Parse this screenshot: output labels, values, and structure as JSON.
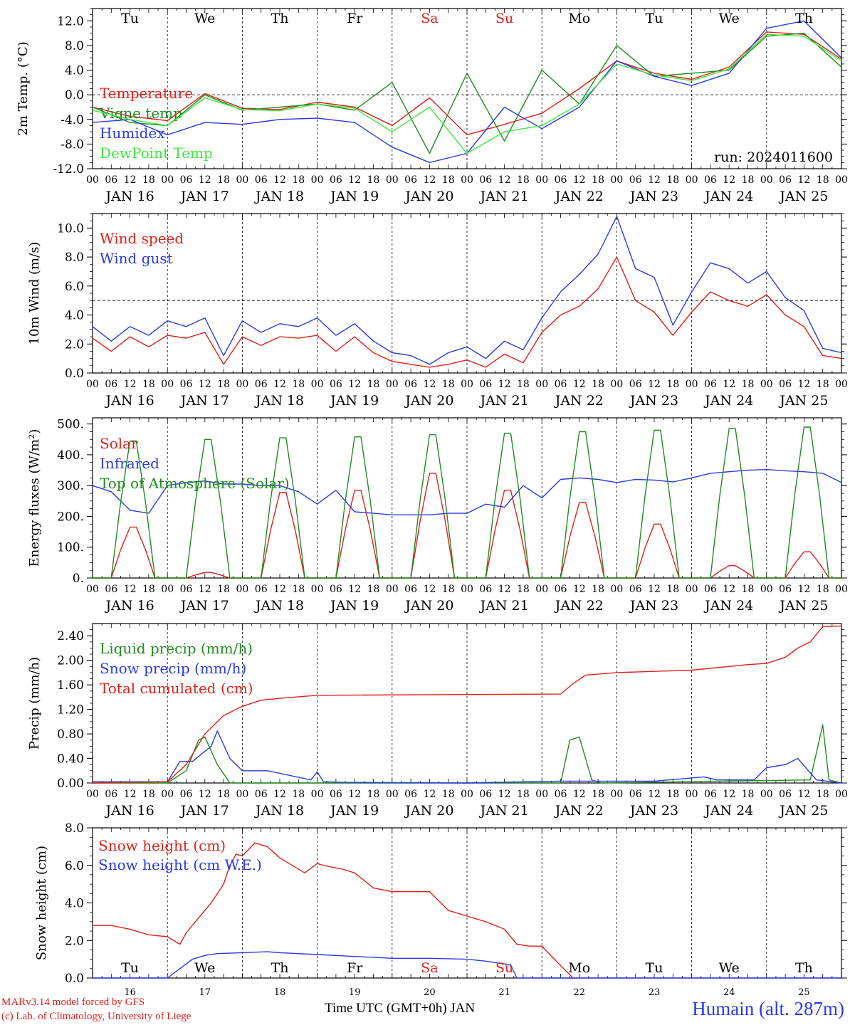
{
  "hour_ticks": [
    "00",
    "06",
    "12",
    "18"
  ],
  "date_labels": [
    "JAN 16",
    "JAN 17",
    "JAN 18",
    "JAN 19",
    "JAN 20",
    "JAN 21",
    "JAN 22",
    "JAN 23",
    "JAN 24",
    "JAN 25"
  ],
  "day_names": [
    "Tu",
    "We",
    "Th",
    "Fr",
    "Sa",
    "Su",
    "Mo",
    "Tu",
    "We",
    "Th"
  ],
  "day_name_colors": [
    "#000000",
    "#000000",
    "#000000",
    "#000000",
    "#e0201a",
    "#e0201a",
    "#000000",
    "#000000",
    "#000000",
    "#000000"
  ],
  "day_numbers": [
    "16",
    "17",
    "18",
    "19",
    "20",
    "21",
    "22",
    "23",
    "24",
    "25"
  ],
  "footer": {
    "credit_line1": "MARv3.14 model forced by GFS",
    "credit_line2": "(c) Lab. of Climatology, University of Liege",
    "xaxis_title": "Time UTC (GMT+0h) JAN",
    "station": "Humain (alt. 287m)"
  },
  "colors": {
    "red": "#e0201a",
    "green": "#1e8c1e",
    "blue": "#2a3be0",
    "lightgreen": "#3ee83e",
    "black": "#000000"
  },
  "chart_data": [
    {
      "type": "line",
      "ylabel": "2m Temp. (°C)",
      "ylim": [
        -12,
        14
      ],
      "yticks": [
        "-12.0",
        "-8.0",
        "-4.0",
        "0.0",
        "4.0",
        "8.0",
        "12.0"
      ],
      "reference_line": 0,
      "annotation": "run: 2024011600",
      "x_hours": [
        0,
        12,
        24,
        36,
        48,
        60,
        72,
        84,
        96,
        108,
        120,
        132,
        144,
        156,
        168,
        180,
        192,
        204,
        216,
        228,
        240
      ],
      "series": [
        {
          "name": "Temperature",
          "color": "#e0201a",
          "values": [
            -2.0,
            -3.5,
            -4.2,
            0.2,
            -2.2,
            -2.4,
            -1.2,
            -2.0,
            -5.0,
            -0.5,
            -6.5,
            -4.8,
            -3.0,
            1.0,
            5.5,
            3.5,
            2.5,
            4.5,
            10.2,
            9.8,
            5.8
          ]
        },
        {
          "name": "Vigne temp",
          "color": "#1e8c1e",
          "values": [
            -2.0,
            -4.5,
            -5.0,
            0.0,
            -2.5,
            -2.0,
            -1.5,
            -2.5,
            2.0,
            -9.5,
            3.5,
            -7.5,
            4.0,
            -1.5,
            8.0,
            3.0,
            3.5,
            4.0,
            9.5,
            10.0,
            4.5
          ]
        },
        {
          "name": "Humidex",
          "color": "#2a3be0",
          "values": [
            -4.5,
            -4.0,
            -6.5,
            -4.5,
            -4.8,
            -4.0,
            -3.8,
            -4.5,
            -8.5,
            -11.0,
            -9.5,
            -2.0,
            -5.5,
            -2.0,
            5.5,
            3.0,
            1.5,
            3.5,
            10.8,
            12.0,
            6.0
          ]
        },
        {
          "name": "DewPoint Temp",
          "color": "#3ee83e",
          "values": [
            -2.5,
            -4.0,
            -5.0,
            -0.5,
            -2.4,
            -2.6,
            -1.5,
            -2.2,
            -6.0,
            -2.0,
            -9.5,
            -6.0,
            -5.0,
            -1.5,
            5.0,
            3.2,
            2.3,
            4.2,
            9.8,
            9.5,
            5.5
          ]
        }
      ]
    },
    {
      "type": "line",
      "ylabel": "10m Wind (m/s)",
      "ylim": [
        0,
        11
      ],
      "yticks": [
        "0.0",
        "2.0",
        "4.0",
        "6.0",
        "8.0",
        "10.0"
      ],
      "reference_line": 5,
      "x_hours": [
        0,
        6,
        12,
        18,
        24,
        30,
        36,
        42,
        48,
        54,
        60,
        66,
        72,
        78,
        84,
        90,
        96,
        102,
        108,
        114,
        120,
        126,
        132,
        138,
        144,
        150,
        156,
        162,
        168,
        174,
        180,
        186,
        192,
        198,
        204,
        210,
        216,
        222,
        228,
        234,
        240
      ],
      "series": [
        {
          "name": "Wind speed",
          "color": "#e0201a",
          "values": [
            2.4,
            1.5,
            2.5,
            1.8,
            2.6,
            2.4,
            2.8,
            0.6,
            2.5,
            1.9,
            2.5,
            2.4,
            2.6,
            1.5,
            2.5,
            1.4,
            0.8,
            0.6,
            0.4,
            0.6,
            0.9,
            0.4,
            1.3,
            0.7,
            2.8,
            4.0,
            4.6,
            5.8,
            8.0,
            5.0,
            4.2,
            2.6,
            4.2,
            5.6,
            5.0,
            4.6,
            5.4,
            4.0,
            3.2,
            1.2,
            1.0
          ]
        },
        {
          "name": "Wind gust",
          "color": "#2a3be0",
          "values": [
            3.2,
            2.2,
            3.2,
            2.6,
            3.6,
            3.2,
            3.8,
            1.2,
            3.6,
            2.8,
            3.4,
            3.2,
            3.8,
            2.6,
            3.4,
            2.2,
            1.4,
            1.2,
            0.6,
            1.4,
            1.8,
            1.0,
            2.2,
            1.6,
            3.8,
            5.6,
            6.8,
            8.2,
            10.8,
            7.2,
            6.6,
            3.3,
            5.6,
            7.6,
            7.2,
            6.2,
            7.0,
            5.2,
            4.3,
            1.7,
            1.4
          ]
        }
      ]
    },
    {
      "type": "line",
      "ylabel": "Energy fluxes (W/m²)",
      "ylim": [
        0,
        520
      ],
      "yticks": [
        "0.",
        "100.",
        "200.",
        "300.",
        "400.",
        "500."
      ],
      "series": [
        {
          "name": "Solar",
          "color": "#e0201a",
          "peaks": [
            [
              13,
              165
            ],
            [
              37,
              18
            ],
            [
              61,
              278
            ],
            [
              85,
              285
            ],
            [
              109,
              340
            ],
            [
              133,
              285
            ],
            [
              157,
              245
            ],
            [
              181,
              175
            ],
            [
              205,
              40
            ],
            [
              229,
              85
            ]
          ]
        },
        {
          "name": "Infrared",
          "color": "#2a3be0",
          "x_hours": [
            0,
            6,
            12,
            18,
            24,
            30,
            36,
            42,
            48,
            54,
            60,
            66,
            72,
            78,
            84,
            90,
            96,
            102,
            108,
            114,
            120,
            126,
            132,
            138,
            144,
            150,
            156,
            162,
            168,
            174,
            180,
            186,
            192,
            198,
            204,
            210,
            216,
            222,
            228,
            234,
            240
          ],
          "values": [
            300,
            280,
            220,
            210,
            300,
            310,
            315,
            305,
            305,
            300,
            300,
            280,
            240,
            285,
            215,
            210,
            205,
            205,
            205,
            210,
            210,
            240,
            230,
            300,
            260,
            320,
            325,
            320,
            310,
            320,
            318,
            312,
            325,
            340,
            345,
            350,
            352,
            348,
            345,
            340,
            310
          ]
        },
        {
          "name": "Top of Atmosphere (Solar)",
          "color": "#1e8c1e",
          "peaks": [
            [
              13,
              445
            ],
            [
              37,
              450
            ],
            [
              61,
              455
            ],
            [
              85,
              458
            ],
            [
              109,
              465
            ],
            [
              133,
              470
            ],
            [
              157,
              475
            ],
            [
              181,
              480
            ],
            [
              205,
              485
            ],
            [
              229,
              490
            ]
          ]
        }
      ]
    },
    {
      "type": "line",
      "ylabel": "Precip (mm/h)",
      "ylim": [
        0,
        2.6
      ],
      "yticks": [
        "0.00",
        "0.40",
        "0.80",
        "1.20",
        "1.60",
        "2.00",
        "2.40"
      ],
      "series": [
        {
          "name": "Liquid precip (mm/h)",
          "color": "#1e8c1e",
          "x_hours": [
            0,
            24,
            30,
            34,
            36,
            40,
            44,
            48,
            120,
            150,
            153,
            156,
            160,
            163,
            230,
            234,
            236,
            240
          ],
          "values": [
            0,
            0,
            0.2,
            0.7,
            0.75,
            0.3,
            0,
            0,
            0,
            0,
            0.7,
            0.75,
            0.05,
            0,
            0.05,
            0.95,
            0.05,
            0
          ]
        },
        {
          "name": "Snow precip (mm/h)",
          "color": "#2a3be0",
          "x_hours": [
            0,
            24,
            28,
            32,
            38,
            40,
            44,
            48,
            52,
            56,
            70,
            72,
            74,
            80,
            120,
            150,
            180,
            196,
            200,
            206,
            212,
            216,
            222,
            226,
            232,
            240
          ],
          "values": [
            0.02,
            0.02,
            0.35,
            0.35,
            0.6,
            0.85,
            0.4,
            0.2,
            0.2,
            0.2,
            0.05,
            0.18,
            0.02,
            0.01,
            0.0,
            0.03,
            0.03,
            0.1,
            0.05,
            0.05,
            0.05,
            0.25,
            0.3,
            0.4,
            0.05,
            0.0
          ]
        },
        {
          "name": "Total cumulated (cm)",
          "color": "#e0201a",
          "x_hours": [
            0,
            24,
            30,
            36,
            42,
            48,
            54,
            60,
            72,
            150,
            154,
            158,
            168,
            180,
            192,
            204,
            210,
            216,
            222,
            226,
            230,
            234,
            240
          ],
          "values": [
            0,
            0.02,
            0.3,
            0.8,
            1.1,
            1.25,
            1.35,
            1.38,
            1.43,
            1.45,
            1.62,
            1.76,
            1.8,
            1.82,
            1.84,
            1.9,
            1.93,
            1.95,
            2.05,
            2.2,
            2.3,
            2.55,
            2.56
          ]
        }
      ]
    },
    {
      "type": "line",
      "ylabel": "Snow height (cm)",
      "ylim": [
        0,
        8
      ],
      "yticks": [
        "0.0",
        "2.0",
        "4.0",
        "6.0",
        "8.0"
      ],
      "series": [
        {
          "name": "Snow height (cm)",
          "color": "#e0201a",
          "x_hours": [
            0,
            6,
            12,
            18,
            24,
            28,
            30,
            34,
            38,
            42,
            44,
            46,
            48,
            52,
            56,
            60,
            68,
            72,
            74,
            80,
            84,
            90,
            96,
            102,
            108,
            114,
            120,
            126,
            132,
            136,
            140,
            144,
            148,
            154
          ],
          "values": [
            2.8,
            2.8,
            2.6,
            2.3,
            2.2,
            1.8,
            2.4,
            3.2,
            4.0,
            5.0,
            6.0,
            6.6,
            6.5,
            7.2,
            7.0,
            6.4,
            5.6,
            6.1,
            6.0,
            5.8,
            5.6,
            4.8,
            4.6,
            4.6,
            4.6,
            3.6,
            3.3,
            3.0,
            2.6,
            1.8,
            1.7,
            1.7,
            1.0,
            0.0
          ]
        },
        {
          "name": "Snow height (cm W.E.)",
          "color": "#2a3be0",
          "x_hours": [
            0,
            14,
            24,
            28,
            32,
            36,
            40,
            48,
            56,
            60,
            72,
            84,
            96,
            108,
            120,
            126,
            134,
            136,
            138,
            240
          ],
          "values": [
            0,
            0,
            0,
            0.5,
            1.0,
            1.2,
            1.3,
            1.35,
            1.4,
            1.35,
            1.25,
            1.15,
            1.05,
            1.05,
            1.0,
            0.9,
            0.7,
            0.0,
            0.0,
            0.0
          ]
        }
      ]
    }
  ]
}
